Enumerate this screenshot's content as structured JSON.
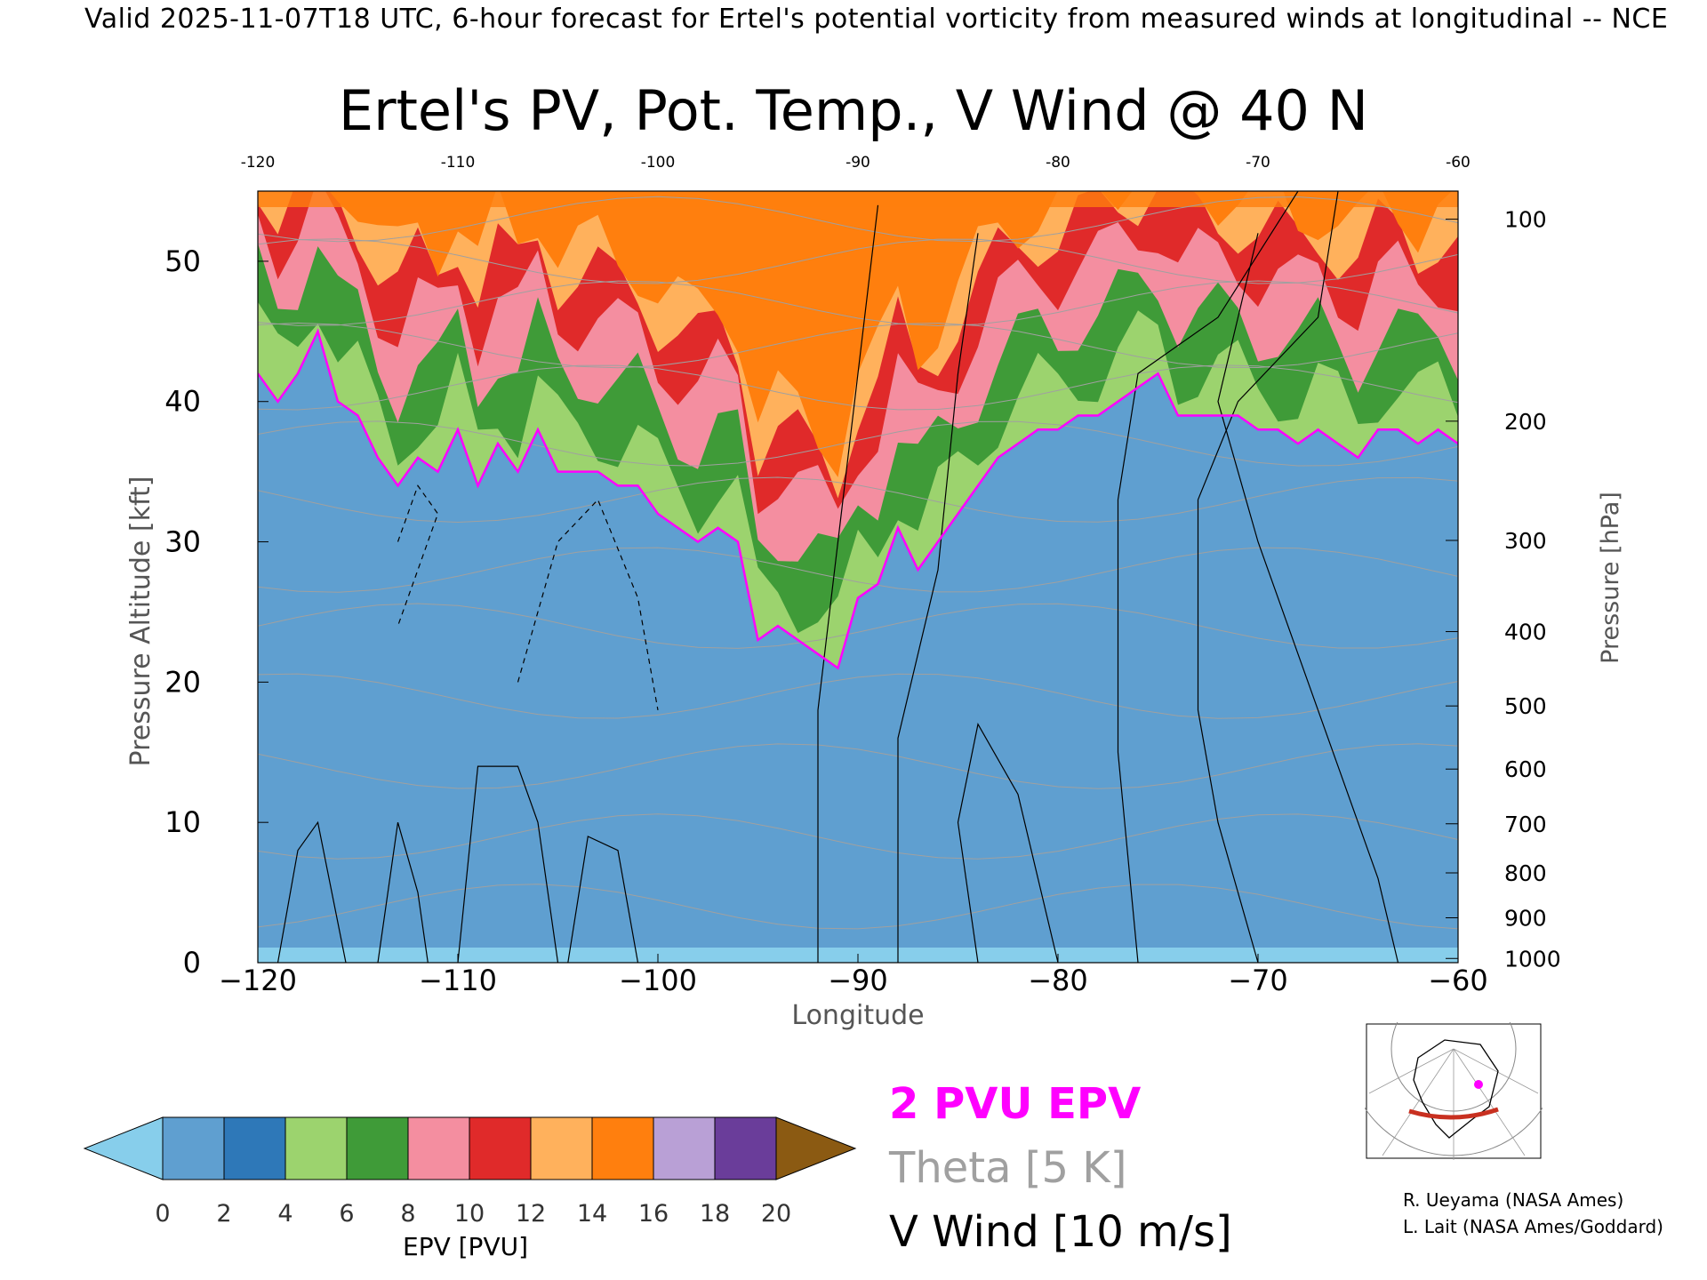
{
  "header": "Valid 2025-11-07T18 UTC, 6-hour forecast for Ertel's potential vorticity from measured winds at longitudinal -- NCE",
  "title": "Ertel's PV, Pot. Temp., V Wind @ 40 N",
  "chart_data": {
    "type": "heatmap",
    "title": "Ertel's PV, Pot. Temp., V Wind @ 40 N",
    "xlabel": "Longitude",
    "ylabel_left": "Pressure Altitude [kft]",
    "ylabel_right": "Pressure [hPa]",
    "x_range": [
      -120,
      -60
    ],
    "y_range": [
      0,
      55
    ],
    "x_ticks": [
      "−120",
      "−110",
      "−100",
      "−90",
      "−80",
      "−70",
      "−60"
    ],
    "x_tick_values": [
      -120,
      -110,
      -100,
      -90,
      -80,
      -70,
      -60
    ],
    "top_ticks": [
      "-120",
      "-110",
      "-100",
      "-90",
      "-80",
      "-70",
      "-60"
    ],
    "y_ticks": [
      "0",
      "10",
      "20",
      "30",
      "40",
      "50"
    ],
    "y_tick_values": [
      0,
      10,
      20,
      30,
      40,
      50
    ],
    "pressure_ticks": [
      "100",
      "200",
      "300",
      "400",
      "500",
      "600",
      "700",
      "800",
      "900",
      "1000"
    ],
    "pressure_tick_alt_kft": [
      53,
      38.6,
      30.1,
      23.6,
      18.3,
      13.8,
      9.9,
      6.4,
      3.2,
      0.3
    ],
    "tropopause_2pvu_kft": [
      [
        -120,
        42
      ],
      [
        -119,
        40
      ],
      [
        -118,
        42
      ],
      [
        -117,
        45
      ],
      [
        -116,
        40
      ],
      [
        -115,
        39
      ],
      [
        -114,
        36
      ],
      [
        -113,
        34
      ],
      [
        -112,
        36
      ],
      [
        -111,
        35
      ],
      [
        -110,
        38
      ],
      [
        -109,
        34
      ],
      [
        -108,
        37
      ],
      [
        -107,
        35
      ],
      [
        -106,
        38
      ],
      [
        -105,
        35
      ],
      [
        -104,
        35
      ],
      [
        -103,
        35
      ],
      [
        -102,
        34
      ],
      [
        -101,
        34
      ],
      [
        -100,
        32
      ],
      [
        -99,
        31
      ],
      [
        -98,
        30
      ],
      [
        -97,
        31
      ],
      [
        -96,
        30
      ],
      [
        -95,
        23
      ],
      [
        -94,
        24
      ],
      [
        -93,
        23
      ],
      [
        -92,
        22
      ],
      [
        -91,
        21
      ],
      [
        -90,
        26
      ],
      [
        -89,
        27
      ],
      [
        -88,
        31
      ],
      [
        -87,
        28
      ],
      [
        -86,
        30
      ],
      [
        -85,
        32
      ],
      [
        -84,
        34
      ],
      [
        -83,
        36
      ],
      [
        -82,
        37
      ],
      [
        -81,
        38
      ],
      [
        -80,
        38
      ],
      [
        -79,
        39
      ],
      [
        -78,
        39
      ],
      [
        -77,
        40
      ],
      [
        -76,
        41
      ],
      [
        -75,
        42
      ],
      [
        -74,
        39
      ],
      [
        -73,
        39
      ],
      [
        -72,
        39
      ],
      [
        -71,
        39
      ],
      [
        -70,
        38
      ],
      [
        -69,
        38
      ],
      [
        -68,
        37
      ],
      [
        -67,
        38
      ],
      [
        -66,
        37
      ],
      [
        -65,
        36
      ],
      [
        -64,
        38
      ],
      [
        -63,
        38
      ],
      [
        -62,
        37
      ],
      [
        -61,
        38
      ],
      [
        -60,
        37
      ]
    ],
    "colorbar": {
      "label": "EPV [PVU]",
      "ticks": [
        "0",
        "2",
        "4",
        "6",
        "8",
        "10",
        "12",
        "14",
        "16",
        "18",
        "20"
      ],
      "colors": [
        "#5f9fd0",
        "#2e78b8",
        "#9cd36e",
        "#3f9b38",
        "#f48ea0",
        "#e02a2a",
        "#ffb15c",
        "#ff7f0e",
        "#b9a0d6",
        "#6a3d9a",
        "#f7e98a",
        "#8b5a12"
      ],
      "under_color": "#87ceeb",
      "over_color": "#8b5a12"
    }
  },
  "legend": {
    "pvu": "2 PVU EPV",
    "theta": "Theta [5 K]",
    "wind": "V Wind [10 m/s]",
    "pvu_color": "#ff00ff",
    "theta_color": "#a0a0a0"
  },
  "credits": {
    "line1": "R. Ueyama (NASA Ames)",
    "line2": "L. Lait (NASA Ames/Goddard)"
  }
}
